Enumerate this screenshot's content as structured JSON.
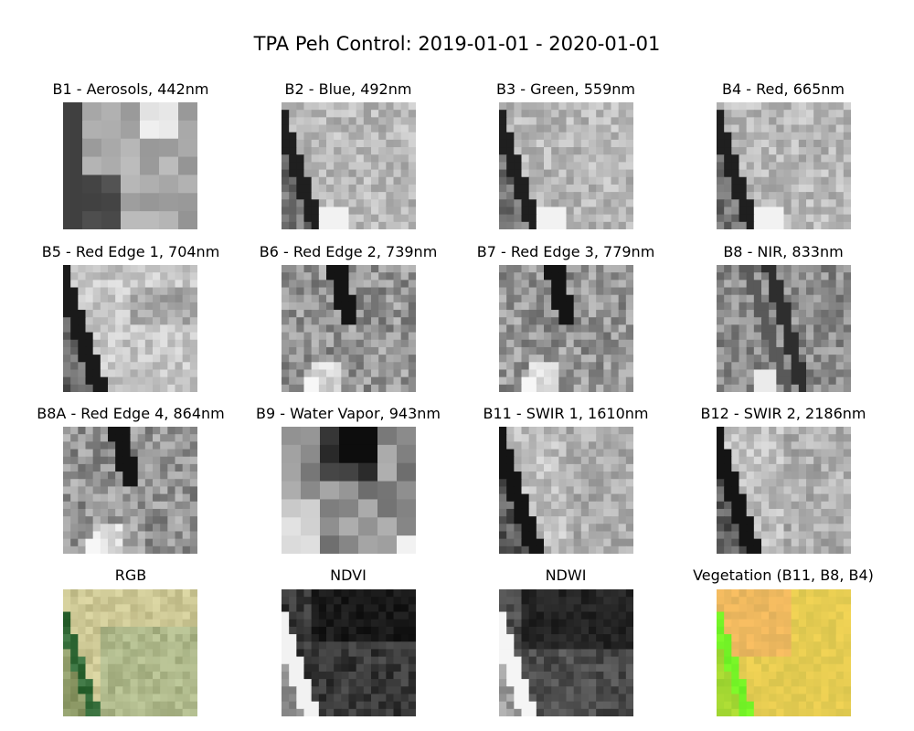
{
  "figure": {
    "title": "TPA Peh Control: 2019-01-01 - 2020-01-01"
  },
  "panels": [
    {
      "label": "B1 - Aerosols, 442nm",
      "style": "b1"
    },
    {
      "label": "B2 - Blue, 492nm",
      "style": "vis"
    },
    {
      "label": "B3 - Green, 559nm",
      "style": "vis"
    },
    {
      "label": "B4 - Red, 665nm",
      "style": "vis"
    },
    {
      "label": "B5 - Red Edge 1, 704nm",
      "style": "re1"
    },
    {
      "label": "B6 - Red Edge 2, 739nm",
      "style": "nir"
    },
    {
      "label": "B7 - Red Edge 3, 779nm",
      "style": "nir"
    },
    {
      "label": "B8 - NIR, 833nm",
      "style": "nir8"
    },
    {
      "label": "B8A - Red Edge 4, 864nm",
      "style": "nir"
    },
    {
      "label": "B9 - Water Vapor, 943nm",
      "style": "b9"
    },
    {
      "label": "B11 - SWIR 1, 1610nm",
      "style": "swir"
    },
    {
      "label": "B12 - SWIR 2, 2186nm",
      "style": "swir"
    },
    {
      "label": "RGB",
      "style": "rgb"
    },
    {
      "label": "NDVI",
      "style": "ndvi"
    },
    {
      "label": "NDWI",
      "style": "ndwi"
    },
    {
      "label": "Vegetation (B11, B8, B4)",
      "style": "veg"
    }
  ]
}
